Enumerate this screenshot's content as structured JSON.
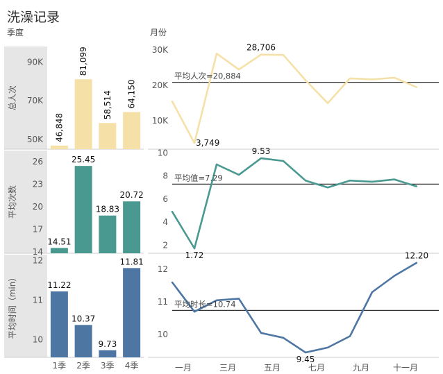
{
  "title": "洗澡记录",
  "left_header": "季度",
  "right_header": "月份",
  "colors": {
    "people": "#f5e1a8",
    "frequency": "#4a9990",
    "duration": "#4e76a3",
    "refline": "#333333",
    "axis_bg": "#e6e6e6"
  },
  "chart_data": [
    {
      "type": "bar",
      "id": "people-quarter",
      "ylabel": "总人次",
      "categories": [
        "1季",
        "2季",
        "3季",
        "4季"
      ],
      "values": [
        46848,
        81099,
        58514,
        64150
      ],
      "value_labels": [
        "46,848",
        "81,099",
        "58,514",
        "64,150"
      ],
      "ylim": [
        45000,
        98000
      ],
      "yticks": [
        50000,
        70000,
        90000
      ],
      "ytick_labels": [
        "50K",
        "70K",
        "90K"
      ]
    },
    {
      "type": "bar",
      "id": "frequency-quarter",
      "ylabel": "平均次数",
      "categories": [
        "1季",
        "2季",
        "3季",
        "4季"
      ],
      "values": [
        14.51,
        25.45,
        18.83,
        20.72
      ],
      "value_labels": [
        "14.51",
        "25.45",
        "18.83",
        "20.72"
      ],
      "ylim": [
        13.8,
        27.5
      ],
      "yticks": [
        14,
        17,
        20,
        23,
        26
      ],
      "ytick_labels": [
        "14",
        "17",
        "20",
        "23",
        "26"
      ]
    },
    {
      "type": "bar",
      "id": "duration-quarter",
      "ylabel": "平均时间（min）",
      "categories": [
        "1季",
        "2季",
        "3季",
        "4季"
      ],
      "values": [
        11.22,
        10.37,
        9.73,
        11.81
      ],
      "value_labels": [
        "11.22",
        "10.37",
        "9.73",
        "11.81"
      ],
      "ylim": [
        9.55,
        12.15
      ],
      "yticks": [
        10,
        11,
        12
      ],
      "ytick_labels": [
        "10",
        "11",
        "12"
      ],
      "xtick_labels": [
        "1季",
        "2季",
        "3季",
        "4季"
      ]
    },
    {
      "type": "line",
      "id": "people-month",
      "x": [
        1,
        2,
        3,
        4,
        5,
        6,
        7,
        8,
        9,
        10,
        11,
        12
      ],
      "values": [
        15500,
        3749,
        29000,
        24500,
        28706,
        28600,
        21500,
        15000,
        22000,
        21700,
        22200,
        19500
      ],
      "ylim": [
        2000,
        31000
      ],
      "yticks": [
        10000,
        20000,
        30000
      ],
      "ytick_labels": [
        "10K",
        "20K",
        "30K"
      ],
      "reference": {
        "value": 20884,
        "label": "平均人次=20,884"
      },
      "point_labels": [
        {
          "index": 1,
          "text": "3,749"
        },
        {
          "index": 4,
          "text": "28,706"
        }
      ]
    },
    {
      "type": "line",
      "id": "frequency-month",
      "x": [
        1,
        2,
        3,
        4,
        5,
        6,
        7,
        8,
        9,
        10,
        11,
        12
      ],
      "values": [
        4.9,
        1.72,
        9.0,
        8.1,
        9.53,
        9.3,
        7.6,
        7.0,
        7.6,
        7.5,
        7.7,
        7.1
      ],
      "ylim": [
        1.3,
        10.2
      ],
      "yticks": [
        2,
        4,
        6,
        8,
        10
      ],
      "ytick_labels": [
        "2",
        "4",
        "6",
        "8",
        "10"
      ],
      "reference": {
        "value": 7.29,
        "label": "平均值=7.29"
      },
      "point_labels": [
        {
          "index": 1,
          "text": "1.72"
        },
        {
          "index": 4,
          "text": "9.53"
        }
      ]
    },
    {
      "type": "line",
      "id": "duration-month",
      "x": [
        1,
        2,
        3,
        4,
        5,
        6,
        7,
        8,
        9,
        10,
        11,
        12
      ],
      "values": [
        11.6,
        10.7,
        11.05,
        11.1,
        10.05,
        9.9,
        9.45,
        9.6,
        9.95,
        11.3,
        11.8,
        12.2
      ],
      "ylim": [
        9.3,
        12.45
      ],
      "yticks": [
        10,
        11,
        12
      ],
      "ytick_labels": [
        "10",
        "11",
        "12"
      ],
      "reference": {
        "value": 10.74,
        "label": "平均时长=10.74"
      },
      "point_labels": [
        {
          "index": 6,
          "text": "9.45"
        },
        {
          "index": 11,
          "text": "12.20"
        }
      ],
      "xtick_labels": [
        {
          "index": 0,
          "text": "一月"
        },
        {
          "index": 2,
          "text": "三月"
        },
        {
          "index": 4,
          "text": "五月"
        },
        {
          "index": 6,
          "text": "七月"
        },
        {
          "index": 8,
          "text": "九月"
        },
        {
          "index": 10,
          "text": "十一月"
        }
      ]
    }
  ]
}
